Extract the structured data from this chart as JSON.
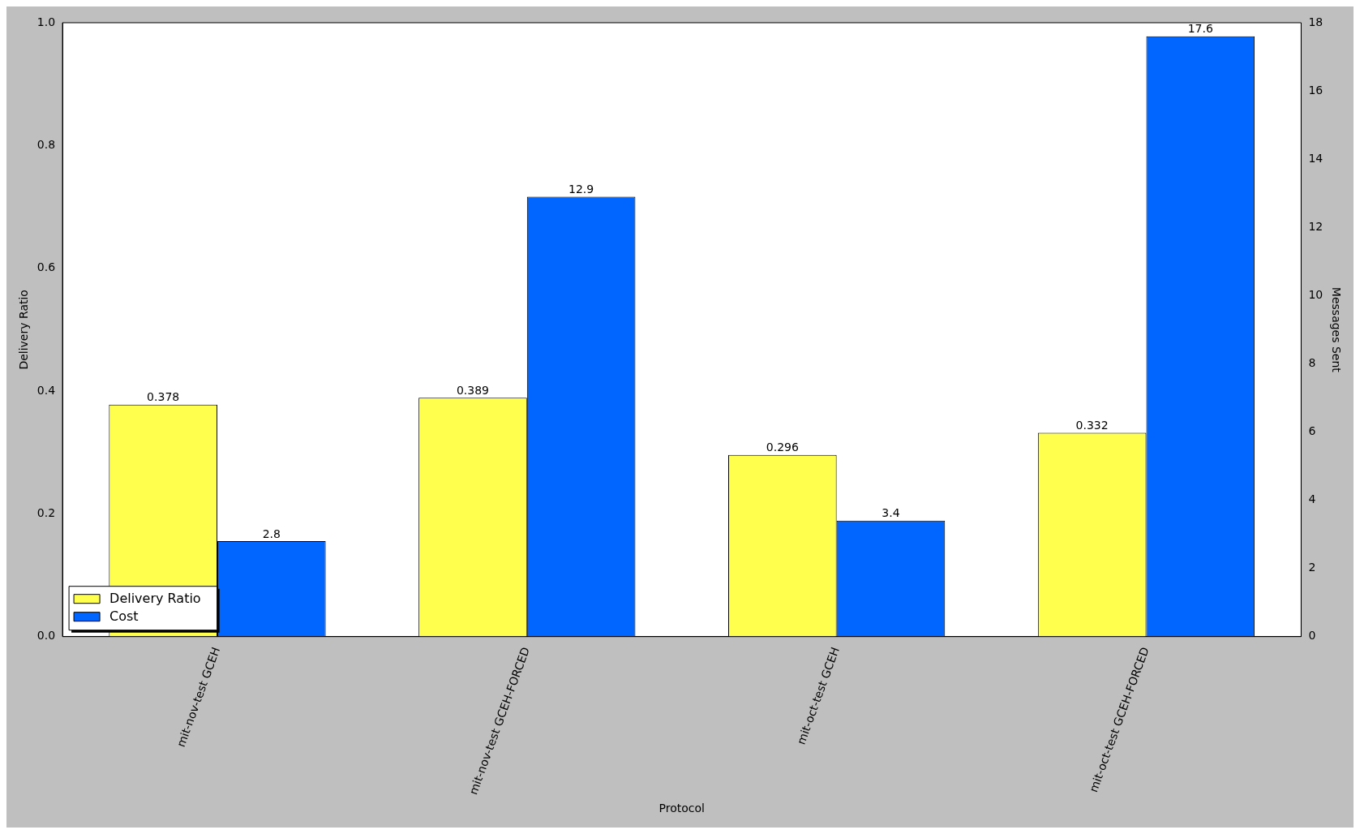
{
  "chart_data": {
    "type": "bar",
    "xlabel": "Protocol",
    "ylabel": "Delivery Ratio",
    "y2label": "Messages Sent",
    "categories": [
      "mit-nov-test GCEH",
      "mit-nov-test GCEH-FORCED",
      "mit-oct-test GCEH",
      "mit-oct-test GCEH-FORCED"
    ],
    "series": [
      {
        "name": "Delivery Ratio",
        "color": "#ffff4d",
        "values": [
          0.378,
          0.389,
          0.296,
          0.332
        ]
      },
      {
        "name": "Cost",
        "color": "#0066ff",
        "values": [
          2.8,
          12.9,
          3.4,
          17.6
        ],
        "axis": "y2"
      }
    ],
    "ylim": [
      0,
      1
    ],
    "yticks": [
      {
        "value": 0,
        "label": "0.0"
      },
      0.2,
      0.4,
      0.6,
      0.8,
      {
        "value": 1,
        "label": "1.0"
      }
    ],
    "y2lim": [
      0,
      18
    ],
    "y2ticks": [
      0,
      2,
      4,
      6,
      8,
      10,
      12,
      14,
      16,
      18
    ],
    "data_labels": true,
    "legend": "bottom left",
    "grid": false
  }
}
